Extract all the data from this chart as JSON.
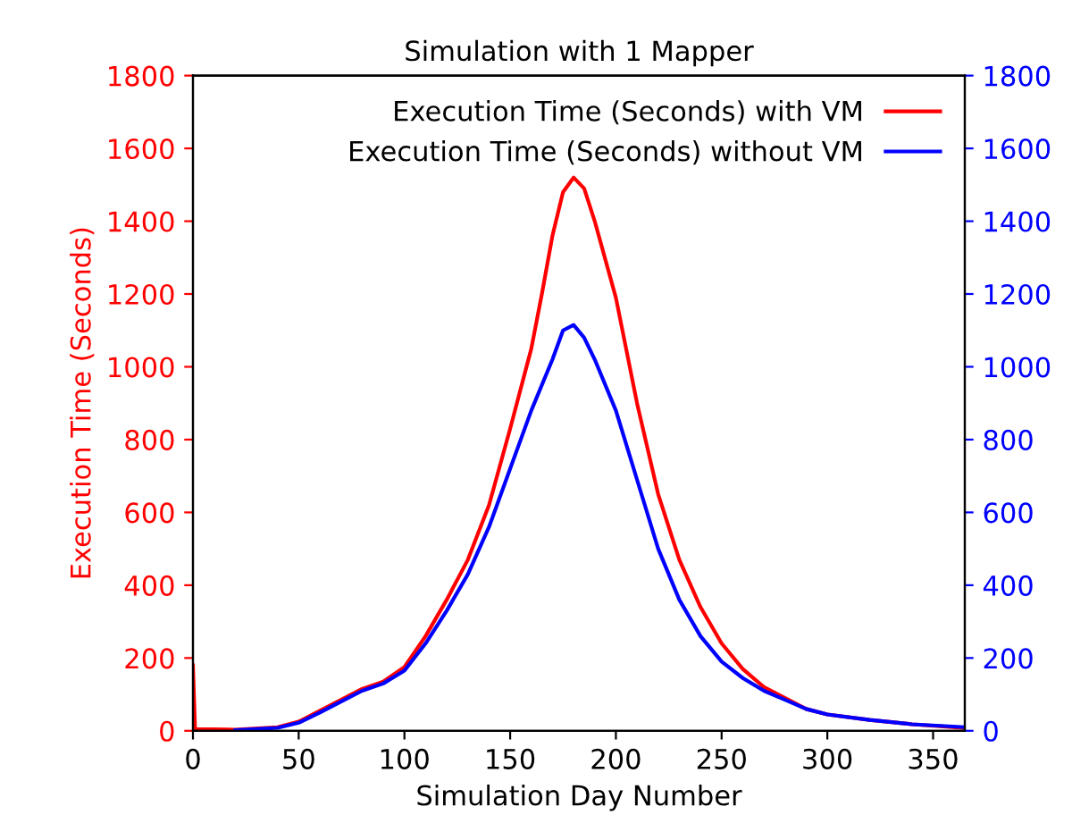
{
  "chart_data": {
    "type": "line",
    "title": "Simulation with 1 Mapper",
    "xlabel": "Simulation Day Number",
    "ylabel": "Execution Time (Seconds)",
    "xlim": [
      0,
      365
    ],
    "xticks": [
      0,
      50,
      100,
      150,
      200,
      250,
      300,
      350
    ],
    "ylim": [
      0,
      1800
    ],
    "yticks": [
      0,
      200,
      400,
      600,
      800,
      1000,
      1200,
      1400,
      1600,
      1800
    ],
    "y2lim": [
      0,
      1800
    ],
    "y2ticks": [
      0,
      200,
      400,
      600,
      800,
      1000,
      1200,
      1400,
      1600,
      1800
    ],
    "legend": "top right",
    "grid": false,
    "line_style": "solid",
    "series": [
      {
        "name": "Execution Time (Seconds) with VM",
        "color": "#ff0000",
        "x": [
          0,
          1,
          20,
          40,
          50,
          60,
          70,
          80,
          90,
          100,
          110,
          120,
          130,
          140,
          150,
          160,
          165,
          170,
          175,
          180,
          185,
          190,
          200,
          210,
          220,
          230,
          240,
          250,
          260,
          270,
          280,
          290,
          300,
          320,
          340,
          365
        ],
        "values": [
          180,
          5,
          3,
          10,
          25,
          55,
          85,
          115,
          135,
          175,
          260,
          360,
          470,
          620,
          830,
          1050,
          1200,
          1360,
          1480,
          1520,
          1490,
          1400,
          1190,
          900,
          650,
          470,
          340,
          240,
          170,
          120,
          90,
          60,
          45,
          30,
          18,
          8
        ]
      },
      {
        "name": "Execution Time (Seconds) without VM",
        "color": "#0000ff",
        "axis": "y2",
        "x": [
          20,
          40,
          50,
          60,
          70,
          80,
          90,
          100,
          110,
          120,
          130,
          140,
          150,
          160,
          170,
          175,
          180,
          185,
          190,
          200,
          210,
          220,
          230,
          240,
          250,
          260,
          270,
          280,
          290,
          300,
          320,
          340,
          365
        ],
        "values": [
          2,
          8,
          22,
          50,
          80,
          110,
          130,
          165,
          240,
          330,
          430,
          560,
          720,
          880,
          1020,
          1100,
          1115,
          1080,
          1020,
          880,
          690,
          500,
          360,
          260,
          190,
          145,
          110,
          85,
          60,
          45,
          30,
          18,
          10
        ]
      }
    ]
  }
}
